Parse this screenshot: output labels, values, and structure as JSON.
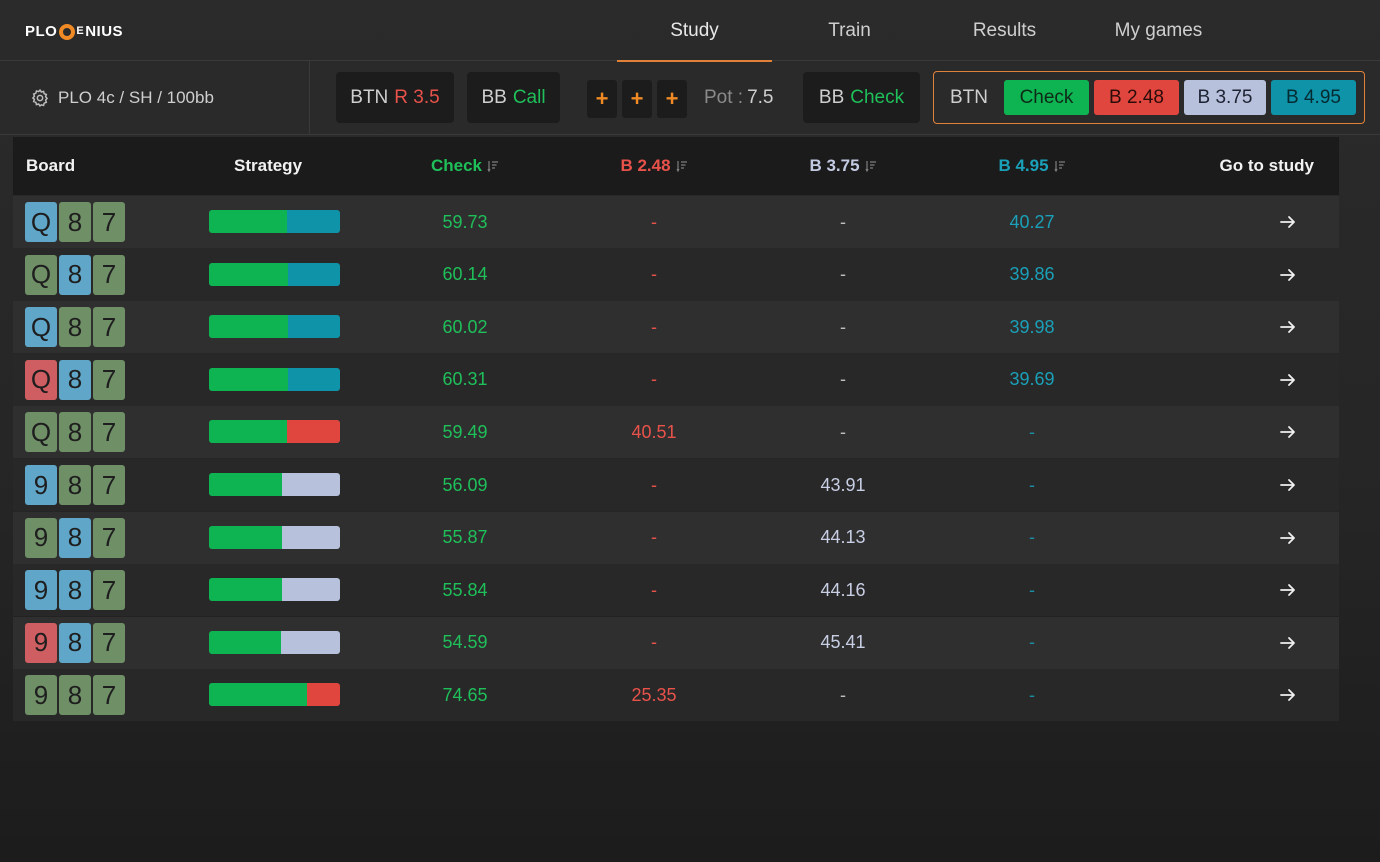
{
  "app": {
    "logo_left": "PLO",
    "logo_right": "NIUS",
    "logo_mid": "E"
  },
  "nav": {
    "tabs": [
      {
        "label": "Study",
        "active": true
      },
      {
        "label": "Train",
        "active": false
      },
      {
        "label": "Results",
        "active": false
      },
      {
        "label": "My games",
        "active": false
      }
    ]
  },
  "settings": {
    "label": "PLO 4c / SH / 100bb",
    "icon": "gear-icon"
  },
  "actions": {
    "history": [
      {
        "pos": "BTN",
        "act": "R 3.5",
        "color": "#e8524a"
      },
      {
        "pos": "BB",
        "act": "Call",
        "color": "#1fbf5a"
      }
    ],
    "plus_buttons": [
      "+",
      "+",
      "+"
    ],
    "pot_label": "Pot :",
    "pot_value": "7.5",
    "last": {
      "pos": "BB",
      "act": "Check",
      "color": "#1fbf5a"
    },
    "current": {
      "pos": "BTN",
      "options": [
        {
          "label": "Check",
          "bg": "#0fb452",
          "fg": "#0d2a16"
        },
        {
          "label": "B 2.48",
          "bg": "#e0463e",
          "fg": "#2a0c0a"
        },
        {
          "label": "B 3.75",
          "bg": "#b7c1dc",
          "fg": "#1d2333"
        },
        {
          "label": "B 4.95",
          "bg": "#0e93a8",
          "fg": "#062a31"
        }
      ]
    }
  },
  "table": {
    "headers": {
      "board": "Board",
      "strategy": "Strategy",
      "check": "Check",
      "b248": "B 2.48",
      "b375": "B 3.75",
      "b495": "B 4.95",
      "goto": "Go to study"
    },
    "header_colors": {
      "check": "#1fbf5a",
      "b248": "#e8524a",
      "b375": "#c3cbe3",
      "b495": "#1aa0b8"
    },
    "rows": [
      {
        "cards": [
          [
            "Q",
            "blue"
          ],
          [
            "8",
            "green"
          ],
          [
            "7",
            "green"
          ]
        ],
        "check": "59.73",
        "b248": "-",
        "b375": "-",
        "b495": "40.27",
        "mix": [
          [
            "check",
            59.73
          ],
          [
            "b495",
            40.27
          ]
        ]
      },
      {
        "cards": [
          [
            "Q",
            "green"
          ],
          [
            "8",
            "blue"
          ],
          [
            "7",
            "green"
          ]
        ],
        "check": "60.14",
        "b248": "-",
        "b375": "-",
        "b495": "39.86",
        "mix": [
          [
            "check",
            60.14
          ],
          [
            "b495",
            39.86
          ]
        ]
      },
      {
        "cards": [
          [
            "Q",
            "blue"
          ],
          [
            "8",
            "green"
          ],
          [
            "7",
            "green"
          ]
        ],
        "check": "60.02",
        "b248": "-",
        "b375": "-",
        "b495": "39.98",
        "mix": [
          [
            "check",
            60.02
          ],
          [
            "b495",
            39.98
          ]
        ]
      },
      {
        "cards": [
          [
            "Q",
            "red"
          ],
          [
            "8",
            "blue"
          ],
          [
            "7",
            "green"
          ]
        ],
        "check": "60.31",
        "b248": "-",
        "b375": "-",
        "b495": "39.69",
        "mix": [
          [
            "check",
            60.31
          ],
          [
            "b495",
            39.69
          ]
        ]
      },
      {
        "cards": [
          [
            "Q",
            "green"
          ],
          [
            "8",
            "green"
          ],
          [
            "7",
            "green"
          ]
        ],
        "check": "59.49",
        "b248": "40.51",
        "b375": "-",
        "b495": "-",
        "mix": [
          [
            "check",
            59.49
          ],
          [
            "b248",
            40.51
          ]
        ]
      },
      {
        "cards": [
          [
            "9",
            "blue"
          ],
          [
            "8",
            "green"
          ],
          [
            "7",
            "green"
          ]
        ],
        "check": "56.09",
        "b248": "-",
        "b375": "43.91",
        "b495": "-",
        "mix": [
          [
            "check",
            56.09
          ],
          [
            "b375",
            43.91
          ]
        ]
      },
      {
        "cards": [
          [
            "9",
            "green"
          ],
          [
            "8",
            "blue"
          ],
          [
            "7",
            "green"
          ]
        ],
        "check": "55.87",
        "b248": "-",
        "b375": "44.13",
        "b495": "-",
        "mix": [
          [
            "check",
            55.87
          ],
          [
            "b375",
            44.13
          ]
        ]
      },
      {
        "cards": [
          [
            "9",
            "blue"
          ],
          [
            "8",
            "blue"
          ],
          [
            "7",
            "green"
          ]
        ],
        "check": "55.84",
        "b248": "-",
        "b375": "44.16",
        "b495": "-",
        "mix": [
          [
            "check",
            55.84
          ],
          [
            "b375",
            44.16
          ]
        ]
      },
      {
        "cards": [
          [
            "9",
            "red"
          ],
          [
            "8",
            "blue"
          ],
          [
            "7",
            "green"
          ]
        ],
        "check": "54.59",
        "b248": "-",
        "b375": "45.41",
        "b495": "-",
        "mix": [
          [
            "check",
            54.59
          ],
          [
            "b375",
            45.41
          ]
        ]
      },
      {
        "cards": [
          [
            "9",
            "green"
          ],
          [
            "8",
            "green"
          ],
          [
            "7",
            "green"
          ]
        ],
        "check": "74.65",
        "b248": "25.35",
        "b375": "-",
        "b495": "-",
        "mix": [
          [
            "check",
            74.65
          ],
          [
            "b248",
            25.35
          ]
        ]
      }
    ],
    "card_colors": {
      "blue": "#5fa6c9",
      "green": "#6f8f67",
      "red": "#cf5e62"
    },
    "mix_colors": {
      "check": "#0fb452",
      "b248": "#e0463e",
      "b375": "#b7c1dc",
      "b495": "#0e93a8"
    },
    "arrow_icon": "arrow-right-icon"
  }
}
